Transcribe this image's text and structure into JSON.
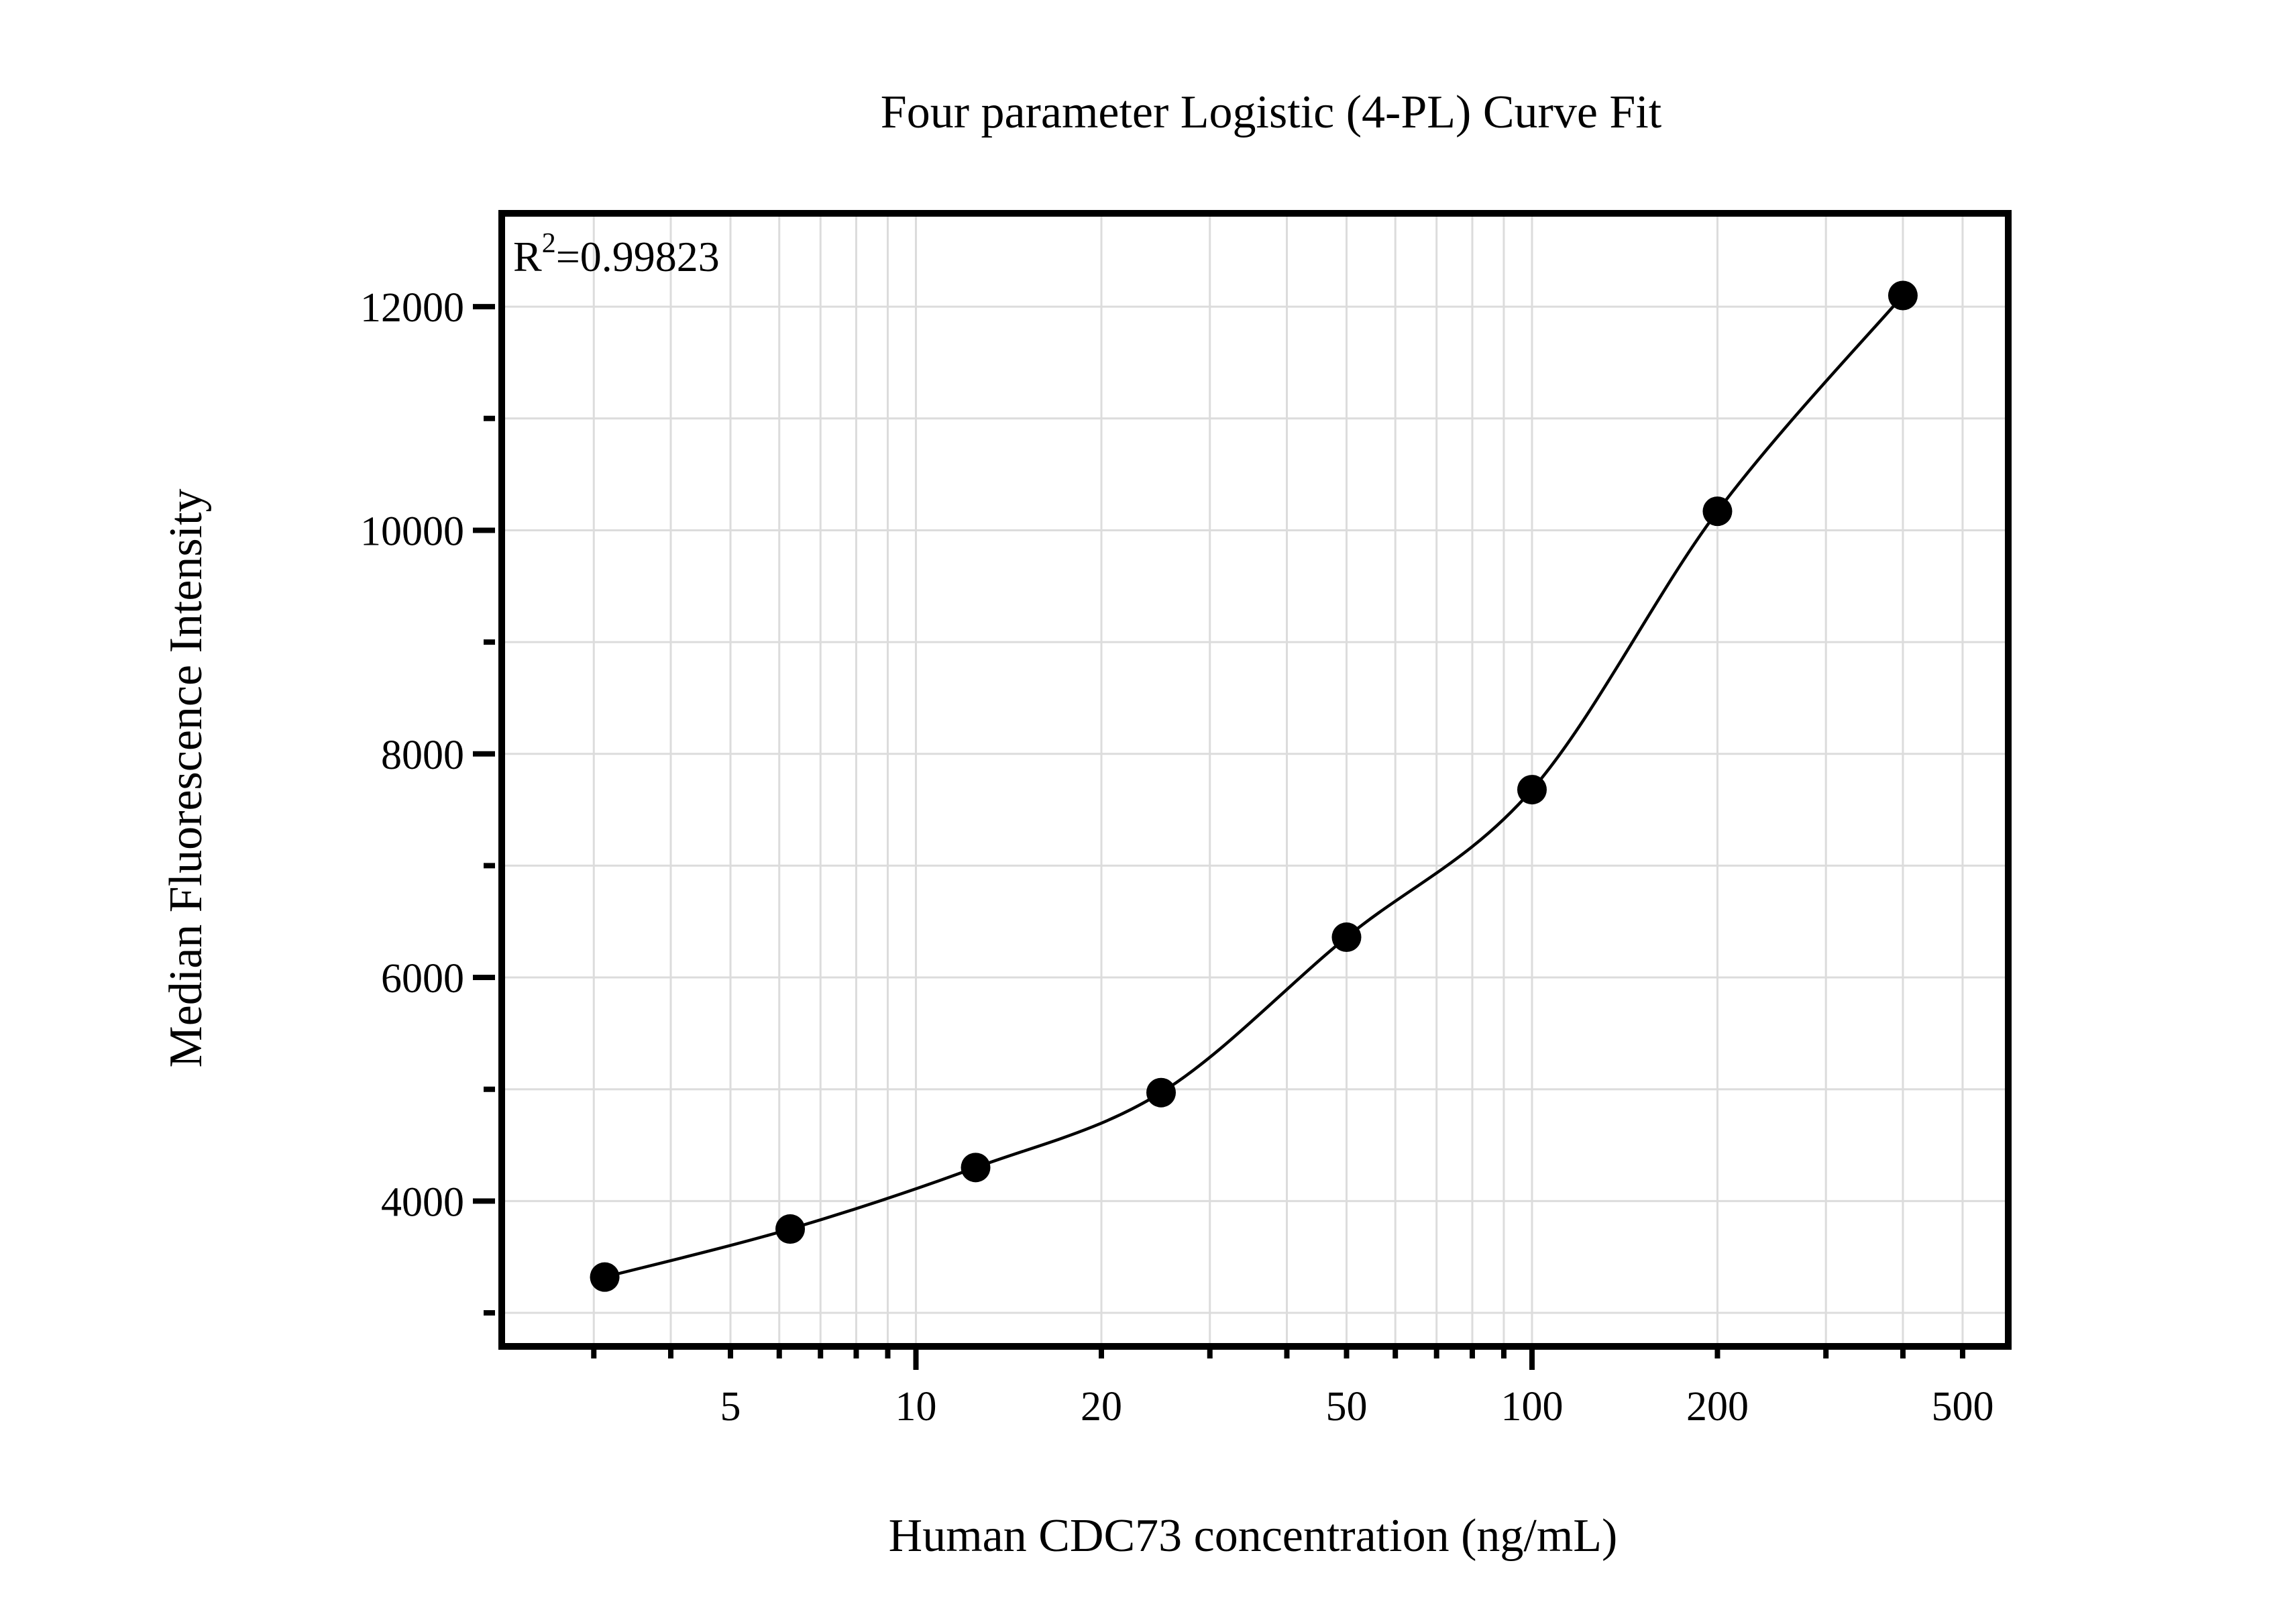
{
  "title": "Four parameter Logistic (4-PL) Curve Fit",
  "annotation": {
    "base": "R",
    "sup": "2",
    "rest": "=0.99823",
    "display": "R2=0.99823"
  },
  "chart_data": {
    "type": "scatter",
    "title": "Four parameter Logistic (4-PL) Curve Fit",
    "xlabel": "Human CDC73 concentration (ng/mL)",
    "ylabel": "Median Fluorescence Intensity",
    "x_scale": "log",
    "y_scale": "linear",
    "xlim": [
      2.1,
      593
    ],
    "ylim": [
      2700,
      12865
    ],
    "grid": true,
    "legend": "none",
    "fit_type": "4PL",
    "r_squared": 0.99823,
    "x": [
      3.125,
      6.25,
      12.5,
      25,
      50,
      100,
      200,
      400
    ],
    "y": [
      3320,
      3750,
      4300,
      4970,
      6360,
      7680,
      10170,
      12100
    ],
    "x_ticks_all": [
      3,
      4,
      5,
      6,
      7,
      8,
      9,
      10,
      20,
      30,
      40,
      50,
      60,
      70,
      80,
      90,
      100,
      200,
      300,
      400,
      500
    ],
    "x_ticks_major": [
      10,
      100
    ],
    "x_tick_labels": [
      {
        "value": 5,
        "label": "5"
      },
      {
        "value": 10,
        "label": "10"
      },
      {
        "value": 20,
        "label": "20"
      },
      {
        "value": 50,
        "label": "50"
      },
      {
        "value": 100,
        "label": "100"
      },
      {
        "value": 200,
        "label": "200"
      },
      {
        "value": 500,
        "label": "500"
      }
    ],
    "y_ticks_major": [
      {
        "value": 4000,
        "label": "4000"
      },
      {
        "value": 6000,
        "label": "6000"
      },
      {
        "value": 8000,
        "label": "8000"
      },
      {
        "value": 10000,
        "label": "10000"
      },
      {
        "value": 12000,
        "label": "12000"
      }
    ],
    "y_ticks_minor": [
      3000,
      5000,
      7000,
      9000,
      11000
    ],
    "colors": {
      "background": "#ffffff",
      "axis": "#000000",
      "grid": "#dcdcdc",
      "points": "#000000",
      "curve": "#000000",
      "text": "#000000"
    }
  }
}
